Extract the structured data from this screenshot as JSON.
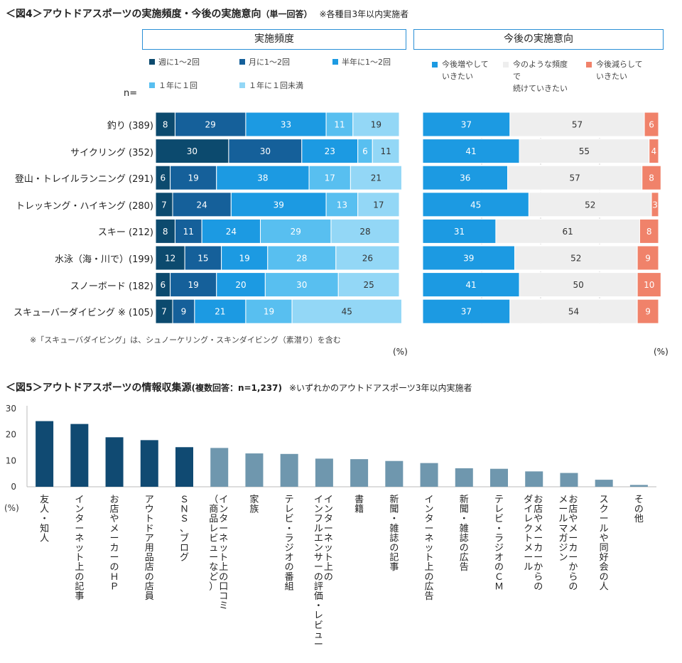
{
  "fig4": {
    "title": "＜図4＞アウトドアスポーツの実施頻度・今後の実施意向",
    "title_sub": "（単一回答）",
    "note": "※各種目3年以内実施者",
    "left_header": "実施頻度",
    "right_header": "今後の実施意向",
    "n_label": "n=",
    "footnote": "※「スキューバダイビング」は、シュノーケリング・スキンダイビング（素潜り）を含む",
    "unit_left": "(%)",
    "unit_right": "(%)",
    "colors": {
      "freq": [
        "#0c4a6e",
        "#15609a",
        "#1c9ae2",
        "#58bff0",
        "#93d7f6"
      ],
      "intent": [
        "#1c9ae2",
        "#eeeeee",
        "#f0826a"
      ]
    }
  },
  "fig5": {
    "title": "＜図5＞アウトドアスポーツの情報収集源",
    "title_sub": "(複数回答：n=1,237)",
    "note": "※いずれかのアウトドアスポーツ3年以内実施者",
    "unit": "(%)",
    "colors": {
      "top": "#104a72",
      "rest": "#6f97ae"
    }
  },
  "chart_data": [
    {
      "type": "bar",
      "orientation": "horizontal",
      "stacked": true,
      "title": "実施頻度",
      "categories": [
        "釣り (389)",
        "サイクリング (352)",
        "登山・トレイルランニング (291)",
        "トレッキング・ハイキング (280)",
        "スキー (212)",
        "水泳（海・川で）(199)",
        "スノーボード (182)",
        "スキューバーダイビング ※ (105)"
      ],
      "series": [
        {
          "name": "週に1～2回",
          "values": [
            8,
            30,
            6,
            7,
            8,
            12,
            6,
            7
          ]
        },
        {
          "name": "月に1～2回",
          "values": [
            29,
            30,
            19,
            24,
            11,
            15,
            19,
            9
          ]
        },
        {
          "name": "半年に1～2回",
          "values": [
            33,
            23,
            38,
            39,
            24,
            19,
            20,
            21
          ]
        },
        {
          "name": "１年に１回",
          "values": [
            11,
            6,
            17,
            13,
            29,
            28,
            30,
            19
          ]
        },
        {
          "name": "１年に１回未満",
          "values": [
            19,
            11,
            21,
            17,
            28,
            26,
            25,
            45
          ]
        }
      ],
      "xlim": [
        0,
        100
      ],
      "legend": "top"
    },
    {
      "type": "bar",
      "orientation": "horizontal",
      "stacked": true,
      "title": "今後の実施意向",
      "categories": [
        "釣り (389)",
        "サイクリング (352)",
        "登山・トレイルランニング (291)",
        "トレッキング・ハイキング (280)",
        "スキー (212)",
        "水泳（海・川で）(199)",
        "スノーボード (182)",
        "スキューバーダイビング ※ (105)"
      ],
      "series": [
        {
          "name": "今後増やして\nいきたい",
          "values": [
            37,
            41,
            36,
            45,
            31,
            39,
            41,
            37
          ]
        },
        {
          "name": "今のような頻度で\n続けていきたい",
          "values": [
            57,
            55,
            57,
            52,
            61,
            52,
            50,
            54
          ]
        },
        {
          "name": "今後減らして\nいきたい",
          "values": [
            6,
            4,
            8,
            3,
            8,
            9,
            10,
            9
          ]
        }
      ],
      "xlim": [
        0,
        100
      ],
      "legend": "top"
    },
    {
      "type": "bar",
      "title": "アウトドアスポーツの情報収集源",
      "categories": [
        "友人・知人",
        "インターネット上の記事",
        "お店やメーカーのＨＰ",
        "アウトドア用品店の店員",
        "ＳＮＳ、ブログ",
        "インターネット上の口コミ（商品レビューなど）",
        "家族",
        "テレビ・ラジオの番組",
        "インターネット上のインフルエンサーの評価・レビュー",
        "書籍",
        "新聞・雑誌の記事",
        "インターネット上の広告",
        "新聞・雑誌の広告",
        "テレビ・ラジオのＣＭ",
        "お店やメーカーからのダイレクトメール",
        "お店やメーカーからのメールマガジン",
        "スクールや同好会の人",
        "その他"
      ],
      "values": [
        25.2,
        24.1,
        19.0,
        17.9,
        15.2,
        14.9,
        12.8,
        12.6,
        10.8,
        10.6,
        9.9,
        9.1,
        7.1,
        6.9,
        5.9,
        5.3,
        2.7,
        0.7
      ],
      "ylim": [
        0,
        30
      ],
      "yticks": [
        0,
        10,
        20,
        30
      ],
      "ylabel": "(%)",
      "highlight_first": 5
    }
  ]
}
